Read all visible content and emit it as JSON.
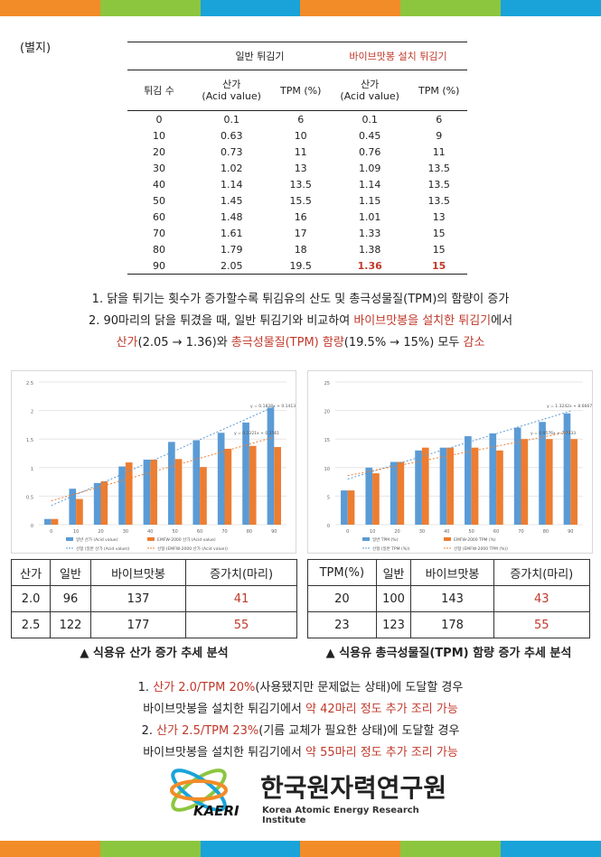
{
  "colors": {
    "bar_blue": "#5b9bd5",
    "bar_orange": "#ed7d31",
    "accent_red": "#c0392b",
    "stripe": [
      "#f28c28",
      "#8cc63f",
      "#1aa3d9",
      "#f28c28",
      "#8cc63f",
      "#1aa3d9"
    ]
  },
  "label_byeolji": "(별지)",
  "table": {
    "group_general": "일반 튀김기",
    "group_bio": "바이브맛봉 설치 튀김기",
    "col_count": "튀김 수",
    "col_acid": "산가",
    "col_acid_sub": "(Acid value)",
    "col_tpm": "TPM (%)",
    "rows": [
      [
        "0",
        "0.1",
        "6",
        "0.1",
        "6"
      ],
      [
        "10",
        "0.63",
        "10",
        "0.45",
        "9"
      ],
      [
        "20",
        "0.73",
        "11",
        "0.76",
        "11"
      ],
      [
        "30",
        "1.02",
        "13",
        "1.09",
        "13.5"
      ],
      [
        "40",
        "1.14",
        "13.5",
        "1.14",
        "13.5"
      ],
      [
        "50",
        "1.45",
        "15.5",
        "1.15",
        "13.5"
      ],
      [
        "60",
        "1.48",
        "16",
        "1.01",
        "13"
      ],
      [
        "70",
        "1.61",
        "17",
        "1.33",
        "15"
      ],
      [
        "80",
        "1.79",
        "18",
        "1.38",
        "15"
      ],
      [
        "90",
        "2.05",
        "19.5",
        "1.36",
        "15"
      ]
    ]
  },
  "summary": {
    "line1": "1. 닭을 튀기는 횟수가 증가할수록 튀김유의 산도 및 총극성물질(TPM)의 함량이 증가",
    "line2_a": "2. 90마리의 닭을 튀겼을 때, 일반 튀김기와 비교하여 ",
    "line2_b": "바이브맛봉을 설치한 튀김기",
    "line2_c": "에서",
    "line3_a": "산가",
    "line3_b": "(2.05 → 1.36)와 ",
    "line3_c": "총극성물질(TPM) 함량",
    "line3_d": "(19.5% → 15%) 모두 ",
    "line3_e": "감소"
  },
  "chart_data": [
    {
      "type": "bar",
      "categories": [
        "0",
        "10",
        "20",
        "30",
        "40",
        "50",
        "60",
        "70",
        "80",
        "90"
      ],
      "ylim": [
        0,
        2.5
      ],
      "yticks": [
        "0",
        "0.5",
        "1",
        "1.5",
        "2",
        "2.5"
      ],
      "series": [
        {
          "name": "일반 산가 (Acid value)",
          "values": [
            0.1,
            0.63,
            0.73,
            1.02,
            1.14,
            1.45,
            1.48,
            1.61,
            1.79,
            2.05
          ]
        },
        {
          "name": "EMFW-2000 산가 (Acid value)",
          "values": [
            0.1,
            0.45,
            0.76,
            1.09,
            1.14,
            1.15,
            1.01,
            1.33,
            1.38,
            1.36
          ]
        }
      ],
      "trend_names": [
        "선형 (일반 산가 (Acid value))",
        "선형 (EMFW-2000 산가 (Acid value))"
      ],
      "eq_general": "y = 0.1828x + 0.1413",
      "eq_bio": "y = 0.1321x + 0.2561"
    },
    {
      "type": "bar",
      "categories": [
        "0",
        "10",
        "20",
        "30",
        "40",
        "50",
        "60",
        "70",
        "80",
        "90"
      ],
      "ylim": [
        0,
        25
      ],
      "yticks": [
        "0",
        "5",
        "10",
        "15",
        "20",
        "25"
      ],
      "series": [
        {
          "name": "일반 TPM (%)",
          "values": [
            6,
            10,
            11,
            13,
            13.5,
            15.5,
            16,
            17,
            18,
            19.5
          ]
        },
        {
          "name": "EMFW-2000 TPM (%)",
          "values": [
            6,
            9,
            11,
            13.5,
            13.5,
            13.5,
            13,
            15,
            15,
            15
          ]
        }
      ],
      "trend_names": [
        "선형 (일반 TPM (%))",
        "선형 (EMFW-2000 TPM (%))"
      ],
      "eq_general": "y = 1.3242x + 8.6667",
      "eq_bio": "y = 0.9576x + 7.7333"
    }
  ],
  "inc_left": {
    "headers": [
      "산가",
      "일반",
      "바이브맛봉",
      "증가치(마리)"
    ],
    "rows": [
      [
        "2.0",
        "96",
        "137",
        "41"
      ],
      [
        "2.5",
        "122",
        "177",
        "55"
      ]
    ]
  },
  "inc_right": {
    "headers": [
      "TPM(%)",
      "일반",
      "바이브맛봉",
      "증가치(마리)"
    ],
    "rows": [
      [
        "20",
        "100",
        "143",
        "43"
      ],
      [
        "23",
        "123",
        "178",
        "55"
      ]
    ]
  },
  "caption_left": "▲ 식용유 산가 증가 추세 분석",
  "caption_right": "▲ 식용유 총극성물질(TPM) 함량 증가 추세 분석",
  "bottom": {
    "l1_a": "1. ",
    "l1_b": "산가 2.0/TPM 20%",
    "l1_c": "(사용됐지만 문제없는 상태)에 도달할 경우",
    "l2_a": "바이브맛봉을 설치한 튀김기에서 ",
    "l2_b": "약 42마리 정도 추가 조리 가능",
    "l3_a": "2. ",
    "l3_b": "산가 2.5/TPM 23%",
    "l3_c": "(기름 교체가 필요한 상태)에 도달할 경우",
    "l4_a": "바이브맛봉을 설치한 튀김기에서 ",
    "l4_b": "약 55마리 정도 추가 조리 가능"
  },
  "logo": {
    "abbr": "KAERI",
    "name_ko": "한국원자력연구원",
    "name_en": "Korea Atomic Energy Research Institute"
  }
}
